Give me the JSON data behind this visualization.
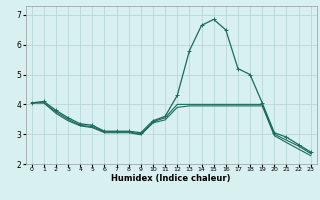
{
  "xlabel": "Humidex (Indice chaleur)",
  "bg_color": "#d8f0f0",
  "grid_color": "#b8d8d8",
  "line_color": "#1a6b5a",
  "xlim": [
    -0.5,
    23.5
  ],
  "ylim": [
    2.0,
    7.3
  ],
  "yticks": [
    2,
    3,
    4,
    5,
    6,
    7
  ],
  "xticks": [
    0,
    1,
    2,
    3,
    4,
    5,
    6,
    7,
    8,
    9,
    10,
    11,
    12,
    13,
    14,
    15,
    16,
    17,
    18,
    19,
    20,
    21,
    22,
    23
  ],
  "line1_x": [
    0,
    1,
    2,
    3,
    4,
    5,
    6,
    7,
    8,
    9,
    10,
    11,
    12,
    13,
    14,
    15,
    16,
    17,
    18,
    19,
    20,
    21,
    22,
    23
  ],
  "line1_y": [
    4.05,
    4.1,
    3.8,
    3.55,
    3.35,
    3.3,
    3.1,
    3.1,
    3.1,
    3.05,
    3.45,
    3.6,
    4.3,
    5.8,
    6.65,
    6.85,
    6.5,
    5.2,
    5.0,
    4.05,
    3.05,
    2.9,
    2.65,
    2.4
  ],
  "line2_x": [
    0,
    1,
    2,
    3,
    4,
    5,
    6,
    7,
    8,
    9,
    10,
    11,
    12,
    13,
    14,
    15,
    16,
    17,
    18,
    19,
    20,
    21,
    22,
    23
  ],
  "line2_y": [
    4.05,
    4.05,
    3.75,
    3.5,
    3.3,
    3.25,
    3.08,
    3.08,
    3.08,
    3.0,
    3.42,
    3.55,
    4.0,
    4.0,
    4.0,
    4.0,
    4.0,
    4.0,
    4.0,
    4.0,
    3.0,
    2.8,
    2.6,
    2.35
  ],
  "line3_x": [
    0,
    1,
    2,
    3,
    4,
    5,
    6,
    7,
    8,
    9,
    10,
    11,
    12,
    13,
    14,
    15,
    16,
    17,
    18,
    19,
    20,
    21,
    22,
    23
  ],
  "line3_y": [
    4.05,
    4.05,
    3.7,
    3.45,
    3.28,
    3.22,
    3.05,
    3.05,
    3.05,
    2.98,
    3.38,
    3.48,
    3.9,
    3.95,
    3.95,
    3.95,
    3.95,
    3.95,
    3.95,
    3.95,
    2.95,
    2.72,
    2.5,
    2.28
  ],
  "xlabel_fontsize": 6.0,
  "ytick_fontsize": 5.5,
  "xtick_fontsize": 4.5
}
